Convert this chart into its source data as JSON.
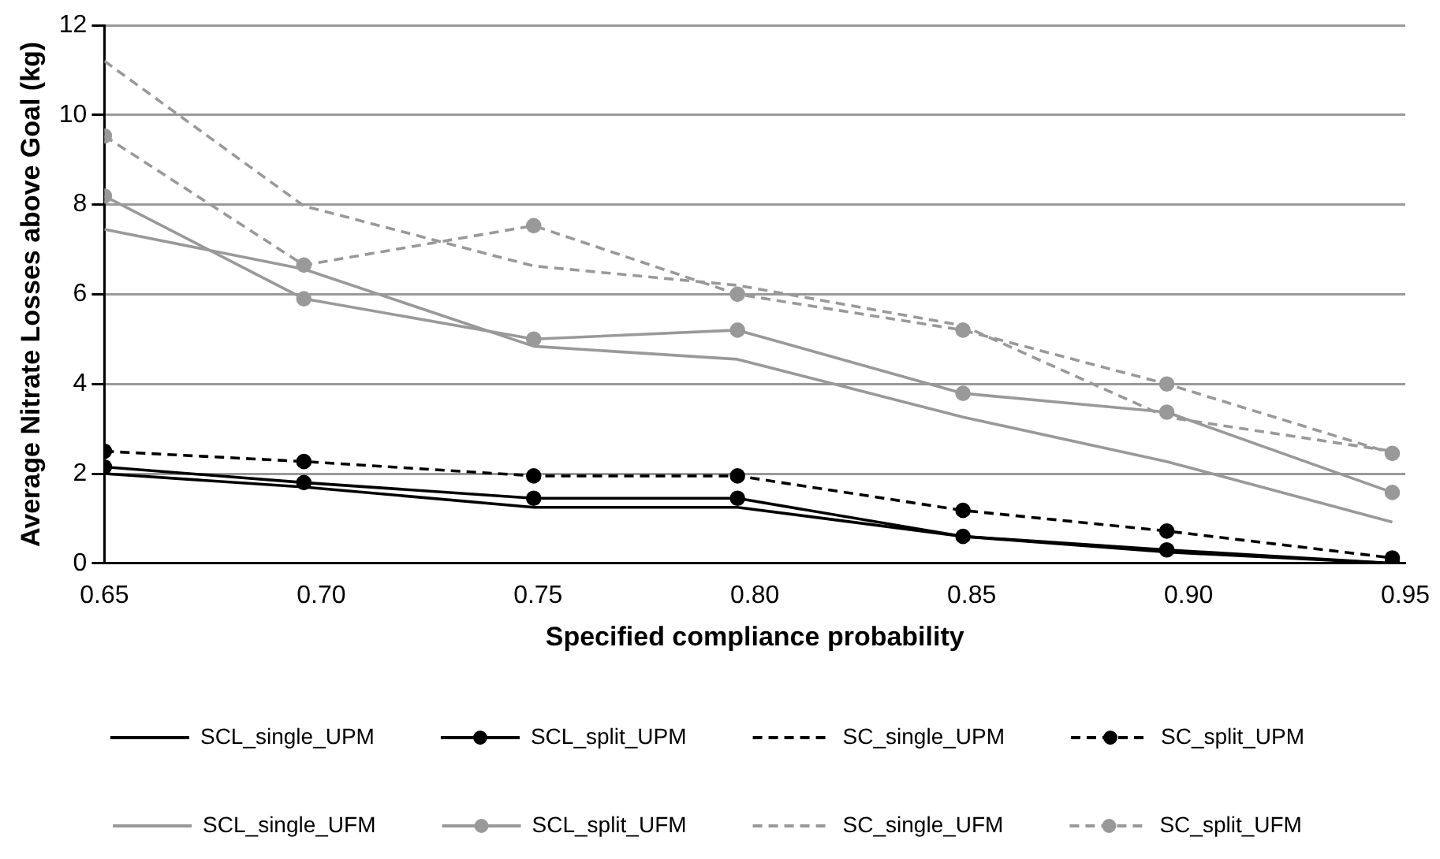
{
  "chart_data": {
    "type": "line",
    "xlabel": "Specified compliance probability",
    "ylabel": "Average Nitrate Losses above Goal (kg)",
    "x": [
      0.65,
      0.696,
      0.749,
      0.796,
      0.848,
      0.895,
      0.947
    ],
    "xlim": [
      0.65,
      0.95
    ],
    "xticks": [
      0.65,
      {
        "value": 0.7,
        "label": "0.70"
      },
      0.75,
      {
        "value": 0.8,
        "label": "0.80"
      },
      0.85,
      {
        "value": 0.9,
        "label": "0.90"
      },
      0.95
    ],
    "ylim": [
      0,
      12
    ],
    "yticks": [
      0,
      2,
      4,
      6,
      8,
      10,
      12
    ],
    "grid": "y",
    "legend": "bottom",
    "series": [
      {
        "name": "SCL_single_UPM",
        "color": "#000000",
        "line_style": "solid",
        "marker": "none",
        "values": [
          2.0,
          1.7,
          1.25,
          1.25,
          0.6,
          0.25,
          0.0
        ]
      },
      {
        "name": "SCL_split_UPM",
        "color": "#000000",
        "line_style": "solid",
        "marker": "circle",
        "values": [
          2.15,
          1.8,
          1.45,
          1.45,
          0.6,
          0.3,
          0.0
        ]
      },
      {
        "name": "SC_single_UPM",
        "color": "#000000",
        "line_style": "dashed",
        "marker": "none",
        "values": [
          null,
          null,
          null,
          null,
          null,
          null,
          null
        ]
      },
      {
        "name": "SC_split_UPM",
        "color": "#000000",
        "line_style": "dashed",
        "marker": "circle",
        "values": [
          2.5,
          2.27,
          1.95,
          1.95,
          1.18,
          0.72,
          0.12
        ]
      },
      {
        "name": "SCL_single_UFM",
        "color": "#999999",
        "line_style": "solid",
        "marker": "none",
        "values": [
          7.45,
          6.56,
          4.84,
          4.55,
          3.26,
          2.27,
          0.92
        ]
      },
      {
        "name": "SCL_split_UFM",
        "color": "#999999",
        "line_style": "solid",
        "marker": "circle",
        "values": [
          8.19,
          5.9,
          5.0,
          5.2,
          3.79,
          3.37,
          1.58
        ]
      },
      {
        "name": "SC_single_UFM",
        "color": "#999999",
        "line_style": "dashed",
        "marker": "none",
        "values": [
          11.2,
          7.97,
          6.63,
          6.2,
          5.3,
          3.26,
          2.5
        ]
      },
      {
        "name": "SC_split_UFM",
        "color": "#999999",
        "line_style": "dashed",
        "marker": "circle",
        "values": [
          9.53,
          6.65,
          7.53,
          6.0,
          5.2,
          4.0,
          2.45
        ]
      }
    ]
  }
}
